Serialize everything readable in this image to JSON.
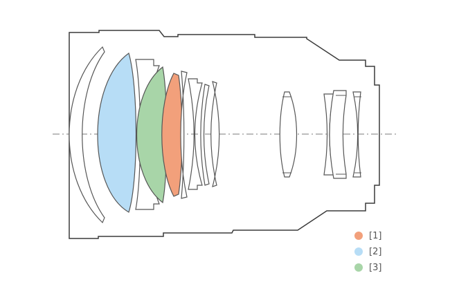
{
  "colors": {
    "outline": "#3a3a3a",
    "axis": "#7a7a7a",
    "lens_stroke": "#555555",
    "element_1": "#f2a07b",
    "element_2": "#b7ddf6",
    "element_3": "#a8d5a8",
    "background": "#ffffff"
  },
  "legend": {
    "items": [
      {
        "label": "[1]",
        "color": "#f2a07b"
      },
      {
        "label": "[2]",
        "color": "#b7ddf6"
      },
      {
        "label": "[3]",
        "color": "#a8d5a8"
      }
    ]
  }
}
